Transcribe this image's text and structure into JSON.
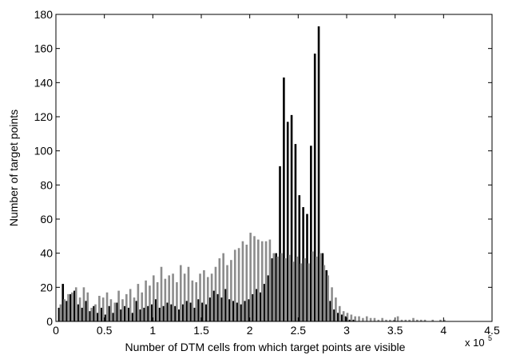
{
  "chart_data": {
    "type": "bar",
    "xlabel": "Number of DTM cells from which target points are visible",
    "ylabel": "Number of target points",
    "x_multiplier_base": "x 10",
    "x_multiplier_exp": "5",
    "xlim": [
      0,
      4.5
    ],
    "ylim": [
      0,
      180
    ],
    "xticks": [
      0,
      0.5,
      1,
      1.5,
      2,
      2.5,
      3,
      3.5,
      4,
      4.5
    ],
    "xtick_labels": [
      "0",
      "0.5",
      "1",
      "1.5",
      "2",
      "2.5",
      "3",
      "3.5",
      "4",
      "4.5"
    ],
    "yticks": [
      0,
      20,
      40,
      60,
      80,
      100,
      120,
      140,
      160,
      180
    ],
    "ytick_labels": [
      "0",
      "20",
      "40",
      "60",
      "80",
      "100",
      "120",
      "140",
      "160",
      "180"
    ],
    "grid": false,
    "legend": "none",
    "bin_width": 0.04,
    "bin_start": 0.04,
    "series": [
      {
        "color": "#000000",
        "offset": -0.008,
        "values": [
          8,
          22,
          12,
          16,
          18,
          10,
          8,
          12,
          6,
          9,
          5,
          8,
          4,
          9,
          5,
          11,
          7,
          9,
          8,
          5,
          12,
          7,
          8,
          9,
          10,
          13,
          8,
          9,
          11,
          10,
          9,
          7,
          10,
          12,
          11,
          8,
          13,
          11,
          10,
          14,
          18,
          16,
          14,
          19,
          13,
          12,
          11,
          10,
          12,
          13,
          16,
          19,
          17,
          22,
          27,
          37,
          40,
          91,
          143,
          117,
          121,
          104,
          74,
          67,
          63,
          103,
          157,
          173,
          40,
          30,
          12,
          7,
          5,
          4,
          3,
          1,
          1,
          0,
          0,
          0,
          0,
          0,
          0,
          0,
          0,
          0,
          0,
          0,
          0,
          0,
          0,
          0,
          0,
          0,
          0,
          0,
          0,
          0,
          0,
          0,
          0,
          0,
          0,
          0,
          0,
          0
        ]
      },
      {
        "color": "#8c8c8c",
        "offset": 0.008,
        "values": [
          10,
          13,
          16,
          17,
          20,
          14,
          20,
          17,
          8,
          10,
          15,
          14,
          17,
          13,
          11,
          18,
          13,
          16,
          19,
          14,
          22,
          17,
          24,
          21,
          27,
          23,
          32,
          25,
          27,
          28,
          23,
          33,
          28,
          32,
          24,
          23,
          28,
          30,
          26,
          28,
          32,
          37,
          40,
          33,
          36,
          42,
          43,
          47,
          45,
          52,
          50,
          48,
          47,
          47,
          48,
          40,
          38,
          40,
          37,
          39,
          35,
          38,
          34,
          37,
          34,
          41,
          38,
          40,
          33,
          27,
          20,
          14,
          9,
          6,
          5,
          4,
          3,
          3,
          2,
          3,
          2,
          2,
          1,
          2,
          1,
          1,
          1,
          3,
          1,
          1,
          1,
          2,
          1,
          1,
          1,
          0,
          1,
          0,
          1,
          1,
          0,
          0,
          0,
          0,
          0,
          0
        ]
      }
    ]
  }
}
